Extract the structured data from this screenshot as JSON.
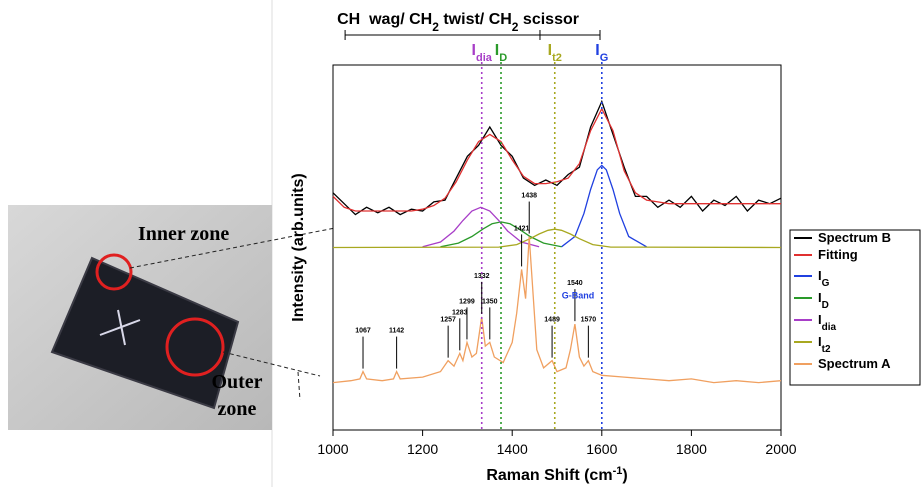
{
  "photo": {
    "inner_label": "Inner zone",
    "outer_label_lines": [
      "Outer",
      "zone"
    ]
  },
  "chart_data": {
    "type": "line",
    "bracket_label": [
      "CH  wag/ CH",
      "2",
      " twist/ CH",
      "2",
      " scissor"
    ],
    "bracket_x": [
      1027,
      1462,
      1596
    ],
    "xlabel": [
      "Raman Shift (cm",
      "-1",
      ")"
    ],
    "ylabel": "Intensity (arb.units)",
    "xlim": [
      1000,
      2000
    ],
    "xticks": [
      1000,
      1200,
      1400,
      1600,
      1800,
      2000
    ],
    "ylim": [
      0,
      10
    ],
    "markers": [
      {
        "label": "I",
        "sub": "dia",
        "x": 1332,
        "color": "#a83ec8"
      },
      {
        "label": "I",
        "sub": "D",
        "x": 1375,
        "color": "#2a9a2a"
      },
      {
        "label": "I",
        "sub": "t2",
        "x": 1495,
        "color": "#a8a820"
      },
      {
        "label": "I",
        "sub": "G",
        "x": 1600,
        "color": "#2040e0"
      }
    ],
    "annotation": {
      "text": "G-Band",
      "x": 1547,
      "y": 3.6,
      "color": "#2040e0"
    },
    "peak_labels": [
      1067,
      1142,
      1257,
      1283,
      1299,
      1332,
      1350,
      1421,
      1438,
      1489,
      1540,
      1570
    ],
    "series": [
      {
        "name": "Spectrum B",
        "color": "#000000",
        "x": [
          1000,
          1025,
          1050,
          1075,
          1100,
          1125,
          1150,
          1175,
          1200,
          1225,
          1250,
          1275,
          1300,
          1325,
          1350,
          1375,
          1400,
          1425,
          1450,
          1475,
          1500,
          1525,
          1550,
          1575,
          1600,
          1625,
          1650,
          1675,
          1700,
          1725,
          1750,
          1775,
          1800,
          1825,
          1850,
          1875,
          1900,
          1925,
          1950,
          1975,
          2000
        ],
        "values": [
          6.5,
          6.2,
          5.9,
          6.1,
          5.95,
          6.1,
          5.9,
          6.05,
          6.0,
          6.25,
          6.3,
          6.9,
          7.5,
          7.8,
          8.3,
          7.8,
          7.5,
          6.9,
          6.7,
          6.85,
          6.7,
          7.0,
          7.2,
          8.3,
          9.0,
          8.1,
          7.2,
          6.4,
          6.4,
          6.1,
          6.3,
          6.1,
          6.4,
          6.0,
          6.3,
          6.15,
          6.4,
          6.0,
          6.3,
          6.2,
          6.35
        ]
      },
      {
        "name": "Fitting",
        "color": "#e03030",
        "x": [
          1000,
          1025,
          1050,
          1075,
          1100,
          1125,
          1150,
          1175,
          1200,
          1225,
          1250,
          1275,
          1300,
          1325,
          1350,
          1375,
          1400,
          1425,
          1450,
          1475,
          1500,
          1525,
          1550,
          1575,
          1600,
          1625,
          1650,
          1675,
          1700,
          1725,
          1750,
          1775,
          1800,
          1825,
          1850,
          1875,
          1900,
          1925,
          1950,
          1975,
          2000
        ],
        "values": [
          6.4,
          6.1,
          6.0,
          6.0,
          6.0,
          6.0,
          6.0,
          6.0,
          6.05,
          6.15,
          6.35,
          6.8,
          7.4,
          7.9,
          8.1,
          7.9,
          7.4,
          6.95,
          6.75,
          6.75,
          6.8,
          6.9,
          7.3,
          8.2,
          8.8,
          8.2,
          7.1,
          6.5,
          6.3,
          6.25,
          6.2,
          6.2,
          6.2,
          6.2,
          6.2,
          6.2,
          6.2,
          6.2,
          6.2,
          6.2,
          6.2
        ]
      },
      {
        "name": "I",
        "sub": "G",
        "color": "#2040e0",
        "x": [
          1510,
          1540,
          1560,
          1575,
          1590,
          1600,
          1610,
          1625,
          1640,
          1660,
          1700
        ],
        "values": [
          5.02,
          5.3,
          5.93,
          6.59,
          7.13,
          7.25,
          7.13,
          6.59,
          5.93,
          5.3,
          5.02
        ]
      },
      {
        "name": "I",
        "sub": "D",
        "color": "#2a9a2a",
        "x": [
          1240,
          1280,
          1310,
          1335,
          1355,
          1375,
          1395,
          1415,
          1440,
          1470,
          1510
        ],
        "values": [
          5.02,
          5.12,
          5.3,
          5.51,
          5.65,
          5.7,
          5.65,
          5.51,
          5.3,
          5.12,
          5.02
        ]
      },
      {
        "name": "I",
        "sub": "dia",
        "color": "#a83ec8",
        "x": [
          1200,
          1240,
          1270,
          1290,
          1310,
          1330,
          1350,
          1370,
          1390,
          1420,
          1460
        ],
        "values": [
          5.02,
          5.15,
          5.45,
          5.74,
          6.0,
          6.1,
          6.0,
          5.74,
          5.45,
          5.15,
          5.02
        ]
      },
      {
        "name": "I",
        "sub": "t2",
        "color": "#a8a820",
        "x": [
          1000,
          1370,
          1410,
          1440,
          1460,
          1480,
          1495,
          1510,
          1530,
          1550,
          1580,
          1620,
          2000
        ],
        "values": [
          5.0,
          5.01,
          5.08,
          5.24,
          5.37,
          5.47,
          5.5,
          5.47,
          5.37,
          5.24,
          5.08,
          5.01,
          5.0
        ]
      },
      {
        "name": "Spectrum A",
        "color": "#f0a060",
        "x": [
          1000,
          1040,
          1060,
          1067,
          1075,
          1110,
          1135,
          1142,
          1150,
          1200,
          1240,
          1257,
          1270,
          1283,
          1290,
          1299,
          1310,
          1320,
          1332,
          1340,
          1350,
          1360,
          1380,
          1400,
          1410,
          1421,
          1430,
          1438,
          1445,
          1455,
          1470,
          1489,
          1500,
          1520,
          1530,
          1540,
          1550,
          1560,
          1570,
          1580,
          1600,
          1650,
          1700,
          1750,
          1800,
          1850,
          1900,
          1950,
          2000
        ],
        "values": [
          1.3,
          1.35,
          1.4,
          1.6,
          1.4,
          1.35,
          1.4,
          1.6,
          1.4,
          1.45,
          1.6,
          1.9,
          1.75,
          2.1,
          1.9,
          2.4,
          2.0,
          2.1,
          3.1,
          2.3,
          2.4,
          2.0,
          1.85,
          2.4,
          3.2,
          4.4,
          3.6,
          5.3,
          4.0,
          2.2,
          1.7,
          1.9,
          1.6,
          1.7,
          2.2,
          2.9,
          2.0,
          1.75,
          1.9,
          1.6,
          1.5,
          1.45,
          1.4,
          1.35,
          1.4,
          1.3,
          1.35,
          1.3,
          1.35
        ]
      }
    ]
  }
}
